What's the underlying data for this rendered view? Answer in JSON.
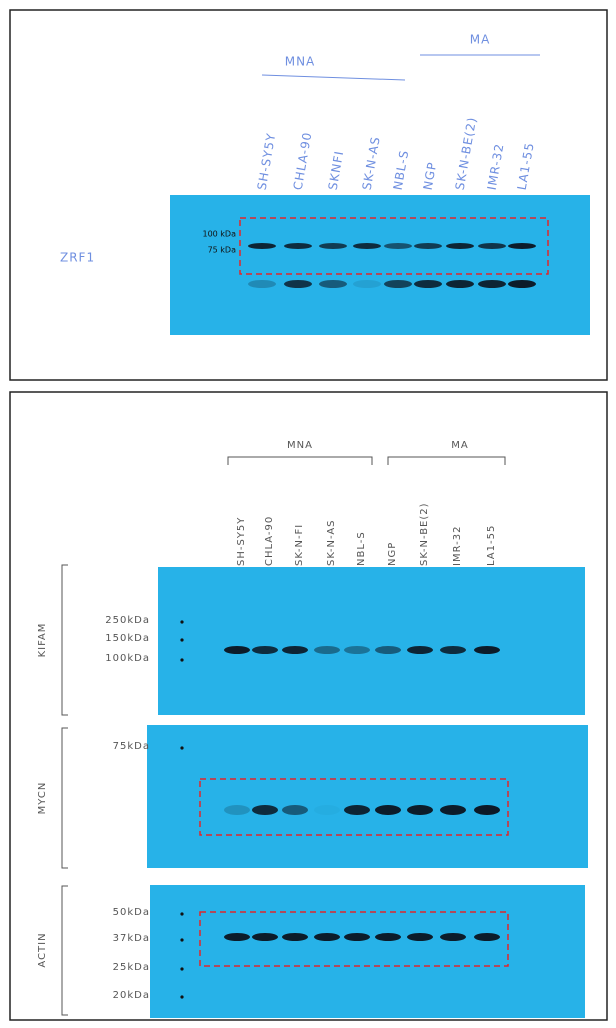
{
  "top_panel": {
    "groups": [
      "MNA",
      "MA"
    ],
    "lanes": [
      "SH-SY5Y",
      "CHLA-90",
      "SKNFI",
      "SK-N-AS",
      "NBL-S",
      "NGP",
      "SK-N-BE(2)",
      "IMR-32",
      "LA1-55"
    ],
    "markers": [
      "100 kDa",
      "75 kDa"
    ],
    "target": "ZRF1"
  },
  "bottom_panel": {
    "groups": [
      "MNA",
      "MA"
    ],
    "lanes": [
      "SH-SY5Y",
      "CHLA-90",
      "SK-N-FI",
      "SK-N-AS",
      "NBL-S",
      "NGP",
      "SK-N-BE(2)",
      "IMR-32",
      "LA1-55"
    ],
    "blots": [
      {
        "target": "KIFAM",
        "markers": [
          "250kDa",
          "150kDa",
          "100kDa"
        ]
      },
      {
        "target": "MYCN",
        "markers": [
          "75kDa"
        ]
      },
      {
        "target": "ACTIN",
        "markers": [
          "50kDa",
          "37kDa",
          "25kDa",
          "20kDa"
        ]
      }
    ]
  }
}
